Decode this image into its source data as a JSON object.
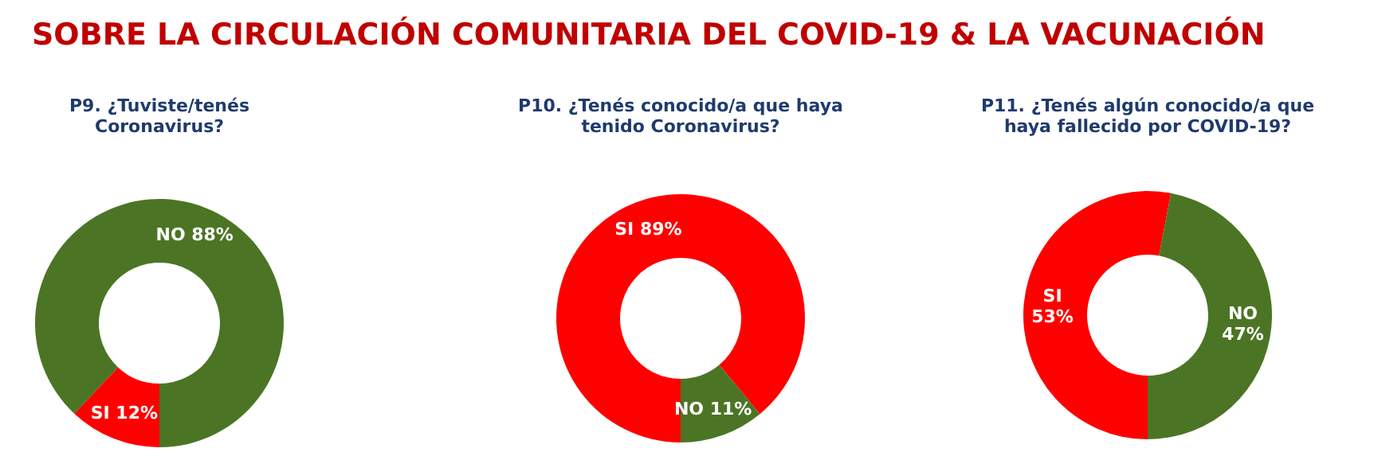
{
  "chart_data": [
    {
      "type": "donut",
      "title": "SOBRE LA CIRCULACIÓN COMUNITARIA DEL COVID-19 & LA VACUNACIÓN",
      "subtitle": "P9. ¿Tuviste/tenés Coronavirus?",
      "categories": [
        "SI",
        "NO"
      ],
      "values": [
        12,
        88
      ],
      "colors": [
        "#ff0000",
        "#4b7524"
      ],
      "value_labels": [
        "12%",
        "88%"
      ]
    },
    {
      "type": "donut",
      "title": "P10. ¿Tenés conocido/a que haya tenido Coronavirus?",
      "categories": [
        "SI",
        "NO"
      ],
      "values": [
        89,
        11
      ],
      "colors": [
        "#ff0000",
        "#4b7524"
      ],
      "value_labels": [
        "89%",
        "11%"
      ]
    },
    {
      "type": "donut",
      "title": "P11. ¿Tenés algún conocido/a que haya fallecido por COVID-19?",
      "categories": [
        "SI",
        "NO"
      ],
      "values": [
        53,
        47
      ],
      "colors": [
        "#ff0000",
        "#4b7524"
      ],
      "value_labels": [
        "53%",
        "47%"
      ]
    }
  ]
}
